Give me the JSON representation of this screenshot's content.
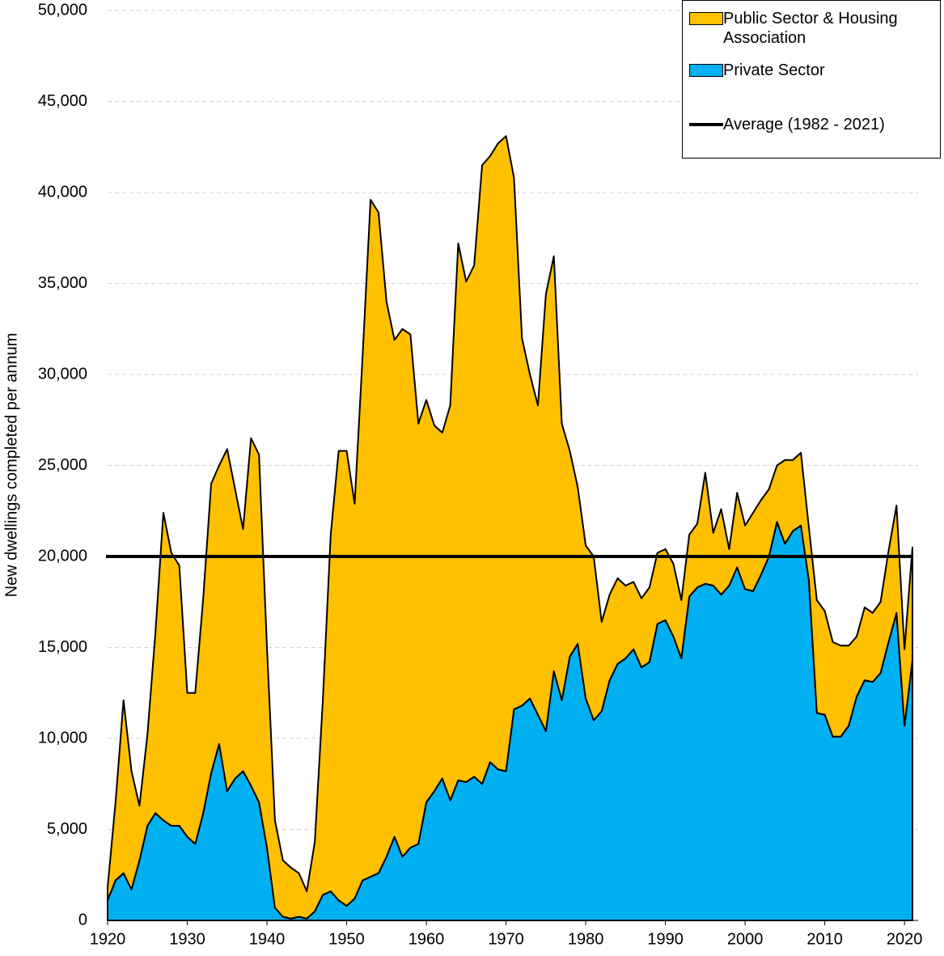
{
  "chart_data": {
    "type": "stacked_area",
    "y_label": "New dwellings completed per annum",
    "x": [
      1920,
      1921,
      1922,
      1923,
      1924,
      1925,
      1926,
      1927,
      1928,
      1929,
      1930,
      1931,
      1932,
      1933,
      1934,
      1935,
      1936,
      1937,
      1938,
      1939,
      1940,
      1941,
      1942,
      1943,
      1944,
      1945,
      1946,
      1947,
      1948,
      1949,
      1950,
      1951,
      1952,
      1953,
      1954,
      1955,
      1956,
      1957,
      1958,
      1959,
      1960,
      1961,
      1962,
      1963,
      1964,
      1965,
      1966,
      1967,
      1968,
      1969,
      1970,
      1971,
      1972,
      1973,
      1974,
      1975,
      1976,
      1977,
      1978,
      1979,
      1980,
      1981,
      1982,
      1983,
      1984,
      1985,
      1986,
      1987,
      1988,
      1989,
      1990,
      1991,
      1992,
      1993,
      1994,
      1995,
      1996,
      1997,
      1998,
      1999,
      2000,
      2001,
      2002,
      2003,
      2004,
      2005,
      2006,
      2007,
      2008,
      2009,
      2010,
      2011,
      2012,
      2013,
      2014,
      2015,
      2016,
      2017,
      2018,
      2019,
      2020,
      2021
    ],
    "series": [
      {
        "name": "Public Sector & Housing Association",
        "color": "#FFC000",
        "values": [
          700,
          4300,
          9500,
          6500,
          3000,
          5000,
          9900,
          16900,
          15000,
          14300,
          7900,
          8300,
          11800,
          15900,
          15300,
          18800,
          15900,
          13300,
          19100,
          19100,
          11000,
          4800,
          3100,
          2800,
          2400,
          1500,
          3800,
          10600,
          19600,
          24700,
          25000,
          21700,
          28800,
          37200,
          36300,
          30500,
          27300,
          29000,
          28200,
          23100,
          22100,
          20100,
          19000,
          21700,
          29500,
          27500,
          28100,
          34000,
          33300,
          34400,
          34900,
          29200,
          20200,
          17800,
          17000,
          24000,
          22800,
          15200,
          11300,
          8600,
          8400,
          9000,
          4900,
          4700,
          4700,
          4000,
          3700,
          3800,
          4100,
          3900,
          3900,
          4000,
          3200,
          3400,
          3500,
          6100,
          2900,
          4700,
          2000,
          4100,
          3500,
          4300,
          4100,
          3700,
          3100,
          4600,
          3900,
          4000,
          2900,
          6200,
          5700,
          5200,
          5000,
          4400,
          3300,
          4000,
          3800,
          3900,
          5000,
          5900,
          4200,
          6200
        ]
      },
      {
        "name": "Private Sector",
        "color": "#00B0F0",
        "values": [
          1100,
          2200,
          2600,
          1700,
          3300,
          5200,
          5900,
          5500,
          5200,
          5200,
          4600,
          4200,
          5900,
          8100,
          9700,
          7100,
          7800,
          8200,
          7400,
          6500,
          4000,
          700,
          200,
          100,
          200,
          100,
          500,
          1400,
          1600,
          1100,
          800,
          1200,
          2200,
          2400,
          2600,
          3500,
          4600,
          3500,
          4000,
          4200,
          6500,
          7100,
          7800,
          6600,
          7700,
          7600,
          7900,
          7500,
          8700,
          8300,
          8200,
          11600,
          11800,
          12200,
          11300,
          10400,
          13700,
          12100,
          14500,
          15200,
          12200,
          11000,
          11500,
          13200,
          14100,
          14400,
          14900,
          13900,
          14200,
          16300,
          16500,
          15600,
          14400,
          17800,
          18300,
          18500,
          18400,
          17900,
          18400,
          19400,
          18200,
          18100,
          19000,
          20000,
          21900,
          20700,
          21400,
          21700,
          18700,
          11400,
          11300,
          10100,
          10100,
          10700,
          12300,
          13200,
          13100,
          13600,
          15300,
          16900,
          10700,
          14300
        ]
      }
    ],
    "average": {
      "name": "Average (1982 - 2021)",
      "value": 20000,
      "color": "#000000"
    },
    "xlim": [
      1920,
      2021
    ],
    "xticks": [
      1920,
      1930,
      1940,
      1950,
      1960,
      1970,
      1980,
      1990,
      2000,
      2010,
      2020
    ],
    "ylim": [
      0,
      50000
    ],
    "yticks": [
      0,
      {
        "value": 5000,
        "label": "5,000"
      },
      {
        "value": 10000,
        "label": "10,000"
      },
      {
        "value": 15000,
        "label": "15,000"
      },
      {
        "value": 20000,
        "label": "20,000"
      },
      {
        "value": 25000,
        "label": "25,000"
      },
      {
        "value": 30000,
        "label": "30,000"
      },
      {
        "value": 35000,
        "label": "35,000"
      },
      {
        "value": 40000,
        "label": "40,000"
      },
      {
        "value": 45000,
        "label": "45,000"
      },
      {
        "value": 50000,
        "label": "50,000"
      }
    ],
    "grid": true,
    "legend": "top-right"
  }
}
